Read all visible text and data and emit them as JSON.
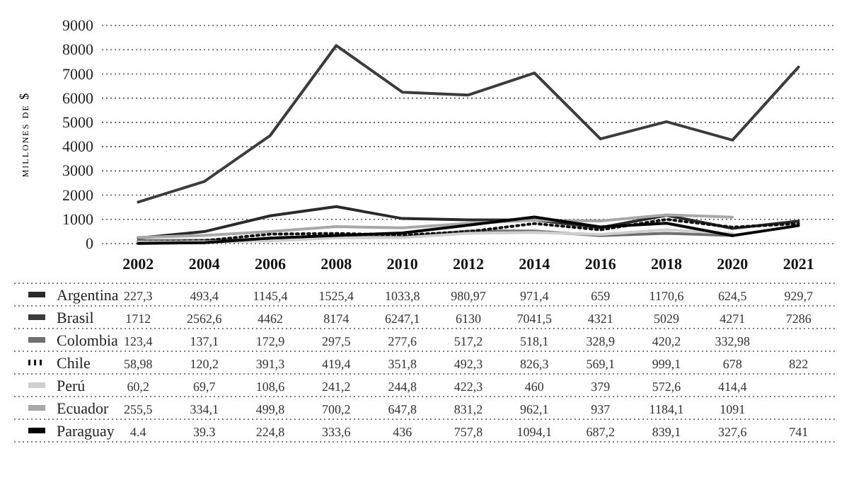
{
  "chart_data": {
    "type": "line",
    "ylabel": "millones de $",
    "categories": [
      "2002",
      "2004",
      "2006",
      "2008",
      "2010",
      "2012",
      "2014",
      "2016",
      "2018",
      "2020",
      "2021"
    ],
    "ylim": [
      0,
      9000
    ],
    "yticks": [
      0,
      1000,
      2000,
      3000,
      4000,
      5000,
      6000,
      7000,
      8000,
      9000
    ],
    "grid": "y",
    "legend": "bottom",
    "data_labels": true,
    "series": [
      {
        "name": "Argentina",
        "color": "#2a2a2a",
        "line_style": "solid",
        "values": [
          227.3,
          493.4,
          1145.4,
          1525.4,
          1033.8,
          980.97,
          971.4,
          659,
          1170.6,
          624.5,
          929.7
        ],
        "value_labels": [
          "227,3",
          "493,4",
          "1145,4",
          "1525,4",
          "1033,8",
          "980,97",
          "971,4",
          "659",
          "1170,6",
          "624,5",
          "929,7"
        ]
      },
      {
        "name": "Brasil",
        "color": "#3c3c3c",
        "line_style": "solid",
        "values": [
          1712,
          2562.6,
          4462,
          8174,
          6247.1,
          6130,
          7041.5,
          4321,
          5029,
          4271,
          7286
        ],
        "value_labels": [
          "1712",
          "2562,6",
          "4462",
          "8174",
          "6247,1",
          "6130",
          "7041,5",
          "4321",
          "5029",
          "4271",
          "7286"
        ]
      },
      {
        "name": "Colombia",
        "color": "#707070",
        "line_style": "solid",
        "values": [
          123.4,
          137.1,
          172.9,
          297.5,
          277.6,
          517.2,
          518.1,
          328.9,
          420.2,
          332.98,
          null
        ],
        "value_labels": [
          "123,4",
          "137,1",
          "172,9",
          "297,5",
          "277,6",
          "517,2",
          "518,1",
          "328,9",
          "420,2",
          "332,98",
          null
        ]
      },
      {
        "name": "Chile",
        "color": "#111111",
        "line_style": "dotted",
        "values": [
          58.98,
          120.2,
          391.3,
          419.4,
          351.8,
          492.3,
          826.3,
          569.1,
          999.1,
          678,
          822
        ],
        "value_labels": [
          "58,98",
          "120,2",
          "391,3",
          "419,4",
          "351,8",
          "492,3",
          "826,3",
          "569,1",
          "999,1",
          "678",
          "822"
        ]
      },
      {
        "name": "Perú",
        "color": "#cfcfcf",
        "line_style": "solid",
        "values": [
          60.2,
          69.7,
          108.6,
          241.2,
          244.8,
          422.3,
          460,
          379,
          572.6,
          414.4,
          null
        ],
        "value_labels": [
          "60,2",
          "69,7",
          "108,6",
          "241,2",
          "244,8",
          "422,3",
          "460",
          "379",
          "572,6",
          "414,4",
          null
        ]
      },
      {
        "name": "Ecuador",
        "color": "#a8a8a8",
        "line_style": "solid",
        "values": [
          255.5,
          334.1,
          499.8,
          700.2,
          647.8,
          831.2,
          962.1,
          937,
          1184.1,
          1091,
          null
        ],
        "value_labels": [
          "255,5",
          "334,1",
          "499,8",
          "700,2",
          "647,8",
          "831,2",
          "962,1",
          "937",
          "1184,1",
          "1091",
          null
        ]
      },
      {
        "name": "Paraguay",
        "color": "#000000",
        "line_style": "solid",
        "values": [
          4.4,
          39.3,
          224.8,
          333.6,
          436,
          757.8,
          1094.1,
          687.2,
          839.1,
          327.6,
          741
        ],
        "value_labels": [
          "4.4",
          "39.3",
          "224,8",
          "333,6",
          "436",
          "757,8",
          "1094,1",
          "687,2",
          "839,1",
          "327,6",
          "741"
        ]
      }
    ]
  }
}
